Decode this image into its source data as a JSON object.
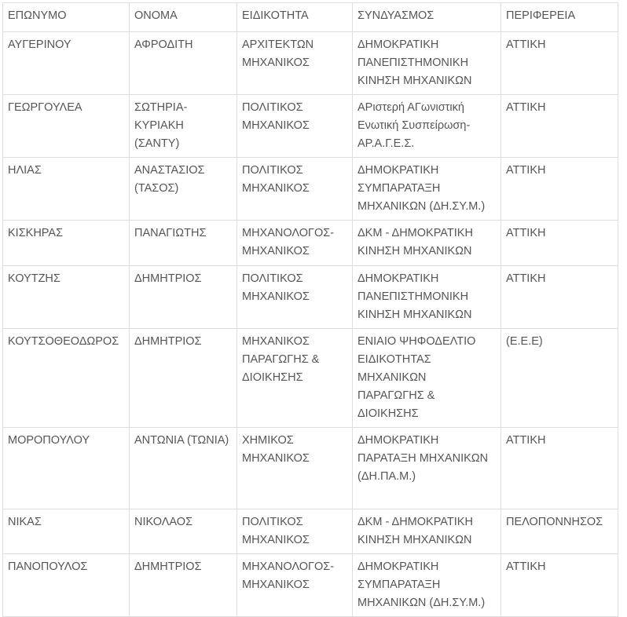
{
  "table": {
    "headers": [
      "ΕΠΩΝΥΜΟ",
      "ΟΝΟΜΑ",
      "ΕΙΔΙΚΟΤΗΤΑ",
      "ΣΥΝΔΥΑΣΜΟΣ",
      "ΠΕΡΙΦΕΡΕΙΑ"
    ],
    "rows": [
      [
        "ΑΥΓΕΡΙΝΟΥ",
        "ΑΦΡΟΔΙΤΗ",
        "ΑΡΧΙΤΕΚΤΩΝ ΜΗΧΑΝΙΚΟΣ",
        "ΔΗΜΟΚΡΑΤΙΚΗ ΠΑΝΕΠΙΣΤΗΜΟΝΙΚΗ ΚΙΝΗΣΗ ΜΗΧΑΝΙΚΩΝ",
        "ΑΤΤΙΚΗ"
      ],
      [
        "ΓΕΩΡΓΟΥΛΕΑ",
        "ΣΩΤΗΡΙΑ-ΚΥΡΙΑΚΗ (ΣΑΝΤΥ)",
        "ΠΟΛΙΤΙΚΟΣ ΜΗΧΑΝΙΚΟΣ",
        "ΑΡιστερή ΑΓωνιστική Ενωτική Συσπείρωση-ΑΡ.Α.Γ.Ε.Σ.",
        "ΑΤΤΙΚΗ"
      ],
      [
        "ΗΛΙΑΣ",
        "ΑΝΑΣΤΑΣΙΟΣ (ΤΑΣΟΣ)",
        "ΠΟΛΙΤΙΚΟΣ ΜΗΧΑΝΙΚΟΣ",
        "ΔΗΜΟΚΡΑΤΙΚΗ ΣΥΜΠΑΡΑΤΑΞΗ ΜΗΧΑΝΙΚΩΝ (ΔΗ.ΣΥ.Μ.)",
        "ΑΤΤΙΚΗ"
      ],
      [
        "ΚΙΣΚΗΡΑΣ",
        "ΠΑΝΑΓΙΩΤΗΣ",
        "ΜΗΧΑΝΟΛΟΓΟΣ-ΜΗΧΑΝΙΚΟΣ",
        "ΔΚΜ - ΔΗΜΟΚΡΑΤΙΚΗ ΚΙΝΗΣΗ ΜΗΧΑΝΙΚΩΝ",
        "ΑΤΤΙΚΗ"
      ],
      [
        "ΚΟΥΤΖΗΣ",
        "ΔΗΜΗΤΡΙΟΣ",
        "ΠΟΛΙΤΙΚΟΣ ΜΗΧΑΝΙΚΟΣ",
        "ΔΗΜΟΚΡΑΤΙΚΗ ΠΑΝΕΠΙΣΤΗΜΟΝΙΚΗ ΚΙΝΗΣΗ ΜΗΧΑΝΙΚΩΝ",
        "ΑΤΤΙΚΗ"
      ],
      [
        "ΚΟΥΤΣΟΘΕΟΔΩΡΟΣ",
        "ΔΗΜΗΤΡΙΟΣ",
        "ΜΗΧΑΝΙΚΟΣ ΠΑΡΑΓΩΓΗΣ & ΔΙΟΙΚΗΣΗΣ",
        "ΕΝΙΑΙΟ ΨΗΦΟΔΕΛΤΙΟ ΕΙΔΙΚΟΤΗΤΑΣ ΜΗΧΑΝΙΚΩΝ ΠΑΡΑΓΩΓΗΣ & ΔΙΟΙΚΗΣΗΣ",
        "(Ε.Ε.Ε)"
      ],
      [
        "ΜΟΡΟΠΟΥΛΟΥ",
        "ΑΝΤΩΝΙΑ (ΤΩΝΙΑ)",
        "ΧΗΜΙΚΟΣ ΜΗΧΑΝΙΚΟΣ",
        "ΔΗΜΟΚΡΑΤΙΚΗ ΠΑΡΑΤΑΞΗ ΜΗΧΑΝΙΚΩΝ (ΔΗ.ΠΑ.Μ.)",
        "ΑΤΤΙΚΗ"
      ],
      [
        "ΝΙΚΑΣ",
        "ΝΙΚΟΛΑΟΣ",
        "ΠΟΛΙΤΙΚΟΣ ΜΗΧΑΝΙΚΟΣ",
        "ΔΚΜ - ΔΗΜΟΚΡΑΤΙΚΗ ΚΙΝΗΣΗ ΜΗΧΑΝΙΚΩΝ",
        "ΠΕΛΟΠΟΝΝΗΣΟΣ"
      ],
      [
        "ΠΑΝΟΠΟΥΛΟΣ",
        "ΔΗΜΗΤΡΙΟΣ",
        "ΜΗΧΑΝΟΛΟΓΟΣ-ΜΗΧΑΝΙΚΟΣ",
        "ΔΗΜΟΚΡΑΤΙΚΗ ΣΥΜΠΑΡΑΤΑΞΗ ΜΗΧΑΝΙΚΩΝ (ΔΗ.ΣΥ.Μ.)",
        "ΑΤΤΙΚΗ"
      ]
    ]
  }
}
